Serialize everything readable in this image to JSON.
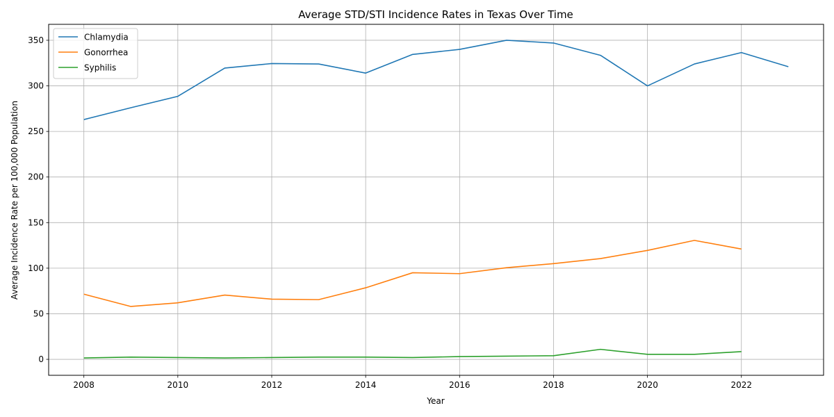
{
  "chart_data": {
    "type": "line",
    "title": "Average STD/STI Incidence Rates in Texas Over Time",
    "xlabel": "Year",
    "ylabel": "Average Incidence Rate per 100,000 Population",
    "x": [
      2008,
      2009,
      2010,
      2011,
      2012,
      2013,
      2014,
      2015,
      2016,
      2017,
      2018,
      2019,
      2020,
      2021,
      2022,
      2023
    ],
    "xlim": [
      2007.25,
      2023.75
    ],
    "ylim": [
      -17.5,
      367.5
    ],
    "xticks": [
      2008,
      2010,
      2012,
      2014,
      2016,
      2018,
      2020,
      2022
    ],
    "yticks": [
      0,
      50,
      100,
      150,
      200,
      250,
      300,
      350
    ],
    "grid": true,
    "legend_position": "upper left",
    "series": [
      {
        "name": "Chlamydia",
        "color": "#1f77b4",
        "values": [
          263,
          276,
          288.5,
          319.5,
          324.5,
          324,
          314,
          334.5,
          340,
          350,
          347,
          333.5,
          300,
          324,
          336.5,
          321
        ]
      },
      {
        "name": "Gonorrhea",
        "color": "#ff7f0e",
        "values": [
          71.5,
          58,
          62,
          70.5,
          66,
          65.5,
          78.5,
          95,
          94,
          100.5,
          105,
          110.5,
          119.5,
          130.5,
          121,
          null
        ]
      },
      {
        "name": "Syphilis",
        "color": "#2ca02c",
        "values": [
          1.5,
          2.5,
          2,
          1.5,
          2,
          2.5,
          2.5,
          2,
          3,
          3.5,
          4,
          11,
          5.5,
          5.5,
          8.5,
          null
        ]
      }
    ]
  }
}
